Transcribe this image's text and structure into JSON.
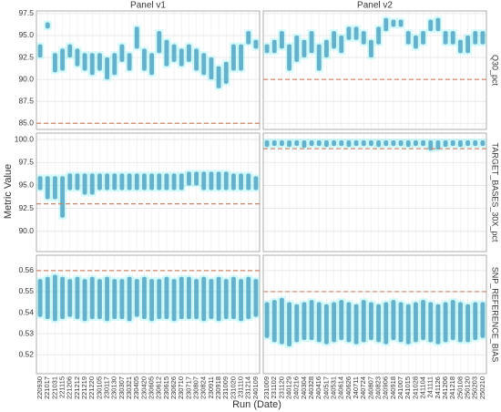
{
  "chart_data": {
    "type": "strip",
    "x_label": "Run (Date)",
    "y_label": "Metric Value",
    "color": "#4a9fc0",
    "threshold_color": "#c8866a",
    "grid": true,
    "columns": [
      {
        "title": "Panel v1",
        "categories": [
          "220930",
          "221017",
          "221031",
          "221115",
          "221206",
          "221212",
          "221219",
          "221220",
          "230105",
          "230117",
          "230130",
          "230307",
          "230321",
          "230405",
          "230420",
          "230605",
          "230612",
          "230615",
          "230626",
          "230710",
          "230717",
          "230807",
          "230824",
          "230911",
          "230918",
          "231009",
          "231020",
          "231110",
          "231214",
          "240109"
        ]
      },
      {
        "title": "Panel v2",
        "categories": [
          "231009",
          "231102",
          "231120",
          "240129",
          "240216",
          "240304",
          "240328",
          "240416",
          "240517",
          "240531",
          "240614",
          "240626",
          "240711",
          "240724",
          "240807",
          "240823",
          "240906",
          "240918",
          "241007",
          "241015",
          "241028",
          "241104",
          "241111",
          "241126",
          "241206",
          "241218",
          "250108",
          "250120",
          "250203",
          "250210"
        ]
      }
    ],
    "rows": [
      {
        "name": "Q30_pct",
        "ylim": [
          84.3,
          97.8
        ],
        "yticks": [
          {
            "value": 85,
            "label": "85.0"
          },
          87.5,
          {
            "value": 90,
            "label": "90.0"
          },
          92.5,
          {
            "value": 95,
            "label": "95.0"
          },
          97.5
        ],
        "panels": [
          {
            "threshold": 85,
            "low": [
              92.5,
              95.8,
              90.8,
              91,
              92.5,
              91.5,
              91,
              90.5,
              91,
              90,
              90.5,
              92,
              91,
              93.5,
              91,
              90.5,
              93,
              91.5,
              92,
              91.5,
              92,
              91,
              90.5,
              90,
              89,
              89.5,
              91,
              91,
              94,
              93.5
            ],
            "high": [
              94,
              96.5,
              93,
              93.5,
              94,
              93.5,
              93,
              93,
              93,
              92.5,
              93,
              94,
              93,
              96,
              93.5,
              93,
              95.5,
              94.5,
              94,
              93.5,
              94,
              93.5,
              93,
              92.5,
              91.5,
              92,
              94,
              94,
              95.5,
              94.5
            ]
          },
          {
            "threshold": 90,
            "low": [
              93,
              93,
              93.5,
              91,
              92,
              92.5,
              93,
              91,
              92.5,
              93.5,
              93,
              94.5,
              94.5,
              94,
              92.5,
              94,
              95.5,
              96,
              96,
              94,
              93.5,
              94,
              95.5,
              95.5,
              94,
              94,
              93,
              93,
              94,
              94
            ],
            "high": [
              94,
              94.5,
              95.5,
              94,
              95,
              94.5,
              95.5,
              94,
              94.5,
              95.5,
              95,
              96,
              96,
              95.5,
              94.5,
              96,
              97,
              96.8,
              96.8,
              95.5,
              95,
              95.5,
              96.8,
              97,
              95.5,
              95.5,
              94.5,
              95,
              95.5,
              95.5
            ]
          }
        ]
      },
      {
        "name": "TARGET_BASES_30X_pct",
        "ylim": [
          87.8,
          100.7
        ],
        "yticks": [
          {
            "value": 90,
            "label": "90.0"
          },
          92.5,
          {
            "value": 95,
            "label": "95.0"
          },
          97.5,
          {
            "value": 100,
            "label": "100.0"
          }
        ],
        "panels": [
          {
            "threshold": 93,
            "low": [
              94.5,
              93.5,
              93.5,
              91.5,
              94.5,
              94.5,
              94,
              94,
              94.5,
              94.5,
              94.5,
              94.5,
              94.5,
              94.5,
              94.5,
              94.5,
              94.5,
              94.5,
              94.5,
              94.5,
              95,
              95,
              94.5,
              94.5,
              94.5,
              94.5,
              94.5,
              94.5,
              94.5,
              94.5
            ],
            "high": [
              96,
              96,
              96,
              96,
              96.3,
              96.3,
              96.3,
              96.3,
              96.3,
              96.3,
              96.3,
              96.3,
              96.3,
              96.3,
              96.3,
              96.3,
              96.3,
              96.3,
              96.3,
              96.3,
              96.5,
              96.5,
              96.5,
              96.5,
              96.5,
              96.5,
              96.3,
              96.3,
              96.3,
              96
            ]
          },
          {
            "threshold": 99,
            "low": [
              99.2,
              99.3,
              99.3,
              99.2,
              99.3,
              99.1,
              99.3,
              99.3,
              99.2,
              99.3,
              99.3,
              99.2,
              99.3,
              99.3,
              99.3,
              99.2,
              99.3,
              99.3,
              99.3,
              99.2,
              99.3,
              99.3,
              98.8,
              98.9,
              99.2,
              99.3,
              99.2,
              99.3,
              99.3,
              99.3
            ],
            "high": [
              99.9,
              99.9,
              99.9,
              99.9,
              99.9,
              99.9,
              99.9,
              99.9,
              99.9,
              99.9,
              99.9,
              99.9,
              99.9,
              99.9,
              99.9,
              99.9,
              99.9,
              99.9,
              99.9,
              99.9,
              99.9,
              99.9,
              99.9,
              99.9,
              99.9,
              99.9,
              99.9,
              99.9,
              99.9,
              99.9
            ]
          }
        ]
      },
      {
        "name": "SNP_REFERENCE_BIAS",
        "ylim": [
          0.511,
          0.5673
        ],
        "yticks": [
          0.52,
          0.53,
          0.54,
          0.55,
          0.56
        ],
        "panels": [
          {
            "threshold": 0.56,
            "low": [
              0.538,
              0.537,
              0.536,
              0.537,
              0.538,
              0.537,
              0.536,
              0.537,
              0.537,
              0.536,
              0.537,
              0.537,
              0.536,
              0.538,
              0.537,
              0.536,
              0.537,
              0.537,
              0.536,
              0.537,
              0.537,
              0.537,
              0.536,
              0.537,
              0.536,
              0.537,
              0.537,
              0.536,
              0.537,
              0.538
            ],
            "high": [
              0.556,
              0.557,
              0.558,
              0.557,
              0.556,
              0.557,
              0.556,
              0.557,
              0.556,
              0.557,
              0.556,
              0.556,
              0.557,
              0.556,
              0.557,
              0.556,
              0.556,
              0.557,
              0.556,
              0.557,
              0.557,
              0.556,
              0.557,
              0.556,
              0.557,
              0.556,
              0.557,
              0.556,
              0.557,
              0.556
            ]
          },
          {
            "threshold": 0.55,
            "low": [
              0.528,
              0.526,
              0.525,
              0.524,
              0.526,
              0.527,
              0.527,
              0.526,
              0.525,
              0.526,
              0.527,
              0.526,
              0.525,
              0.526,
              0.527,
              0.526,
              0.525,
              0.527,
              0.526,
              0.525,
              0.526,
              0.527,
              0.526,
              0.525,
              0.526,
              0.527,
              0.526,
              0.526,
              0.527,
              0.528
            ],
            "high": [
              0.545,
              0.546,
              0.547,
              0.545,
              0.544,
              0.545,
              0.546,
              0.545,
              0.544,
              0.545,
              0.546,
              0.545,
              0.544,
              0.546,
              0.545,
              0.544,
              0.545,
              0.546,
              0.545,
              0.544,
              0.545,
              0.546,
              0.545,
              0.544,
              0.545,
              0.546,
              0.545,
              0.544,
              0.545,
              0.545
            ]
          }
        ]
      }
    ]
  }
}
